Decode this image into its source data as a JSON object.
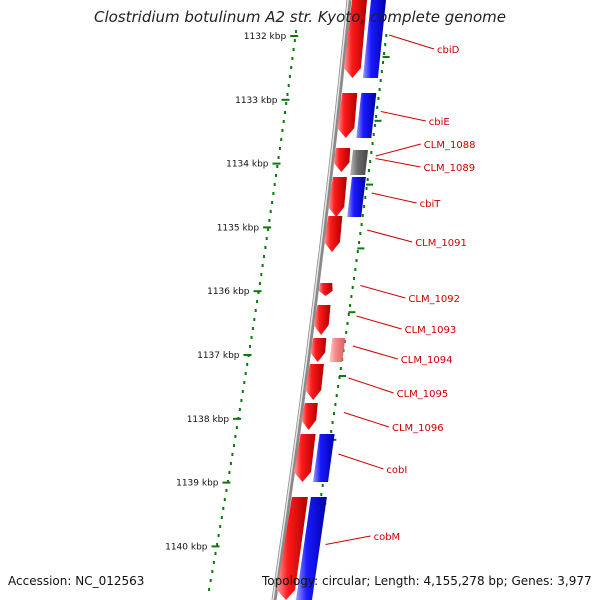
{
  "title": "Clostridium botulinum A2 str. Kyoto, complete genome",
  "colors": {
    "forward_gene": "#ee0000",
    "reverse_gene": "#0000ee",
    "light_gene": "#f08080",
    "grey_gene": "#707070",
    "tick": "#0a7a0a",
    "label": "#cc0000",
    "backbone": "#888888"
  },
  "scale_labels": [
    "1132 kbp",
    "1133 kbp",
    "1134 kbp",
    "1135 kbp",
    "1136 kbp",
    "1137 kbp",
    "1138 kbp",
    "1139 kbp",
    "1140 kbp"
  ],
  "genes": [
    {
      "label": "cbiD",
      "color": "forward_gene",
      "strand": "both"
    },
    {
      "label": "cbiE",
      "color": "forward_gene",
      "strand": "both"
    },
    {
      "label": "CLM_1088",
      "color": "forward_gene",
      "strand": "forward"
    },
    {
      "label": "CLM_1089",
      "color": "grey_gene",
      "strand": "reverse"
    },
    {
      "label": "cbiT",
      "color": "forward_gene",
      "strand": "both"
    },
    {
      "label": "CLM_1091",
      "color": "forward_gene",
      "strand": "forward"
    },
    {
      "label": "CLM_1092",
      "color": "forward_gene",
      "strand": "forward"
    },
    {
      "label": "CLM_1093",
      "color": "forward_gene",
      "strand": "forward"
    },
    {
      "label": "CLM_1094",
      "color": "light_gene",
      "strand": "both"
    },
    {
      "label": "CLM_1095",
      "color": "forward_gene",
      "strand": "forward"
    },
    {
      "label": "CLM_1096",
      "color": "forward_gene",
      "strand": "forward"
    },
    {
      "label": "cobI",
      "color": "forward_gene",
      "strand": "both"
    },
    {
      "label": "cobM",
      "color": "forward_gene",
      "strand": "both"
    }
  ],
  "footer": {
    "accession": "Accession: NC_012563",
    "topology": "Topology: circular; Length: 4,155,278 bp; Genes: 3,977"
  }
}
